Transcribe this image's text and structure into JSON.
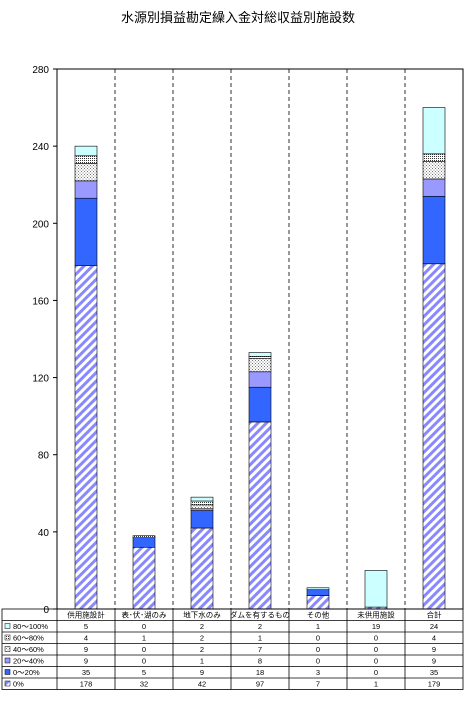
{
  "chart_data": {
    "type": "bar",
    "stacked": true,
    "title": "水源別損益勘定繰入金対総収益別施設数",
    "categories": [
      "供用施設計",
      "表･伏･湖のみ",
      "地下水のみ",
      "ダムを有するもの",
      "その他",
      "未供用施設",
      "合計"
    ],
    "yticks": [
      "0",
      "40",
      "80",
      "120",
      "160",
      "200",
      "240",
      "280"
    ],
    "ylim": [
      0,
      280
    ],
    "grid": "dashed vertical separators",
    "series": [
      {
        "name": "0%",
        "values": [
          178,
          32,
          42,
          97,
          7,
          1,
          179
        ],
        "fill": "hatch",
        "color": "#8888ff"
      },
      {
        "name": "0～20%",
        "values": [
          35,
          5,
          9,
          18,
          3,
          0,
          35
        ],
        "fill": "solid",
        "color": "#3366ff"
      },
      {
        "name": "20～40%",
        "values": [
          9,
          0,
          1,
          8,
          0,
          0,
          9
        ],
        "fill": "solid",
        "color": "#9999ff"
      },
      {
        "name": "40～60%",
        "values": [
          9,
          0,
          2,
          7,
          0,
          0,
          9
        ],
        "fill": "dots",
        "color": "#999999"
      },
      {
        "name": "60～80%",
        "values": [
          4,
          1,
          2,
          1,
          0,
          0,
          4
        ],
        "fill": "dots2",
        "color": "#555555"
      },
      {
        "name": "80～100%",
        "values": [
          5,
          0,
          2,
          2,
          1,
          19,
          24
        ],
        "fill": "solid",
        "color": "#ccffff"
      }
    ]
  }
}
